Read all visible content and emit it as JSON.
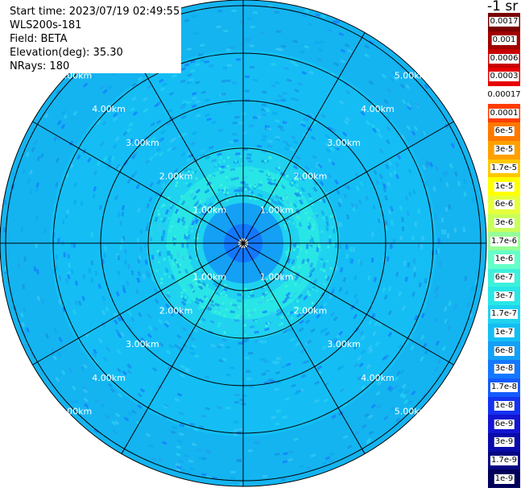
{
  "info": {
    "start_time": "Start time: 2023/07/19 02:49:55",
    "instrument": "WLS200s-181",
    "field": "Field: BETA",
    "elevation": "Elevation(deg): 35.30",
    "nrays": "NRays: 180"
  },
  "range_labels": [
    "1.00km",
    "2.00km",
    "3.00km",
    "4.00km",
    "5.00km"
  ],
  "colorbar": {
    "unit": "-1 sr",
    "ticks": [
      "0.0017",
      "0.001",
      "0.0006",
      "0.0003",
      "0.00017",
      "0.0001",
      "6e-5",
      "3e-5",
      "1.7e-5",
      "1e-5",
      "6e-6",
      "3e-6",
      "1.7e-6",
      "1e-6",
      "6e-7",
      "3e-7",
      "1.7e-7",
      "1e-7",
      "6e-8",
      "3e-8",
      "1.7e-8",
      "1e-8",
      "6e-9",
      "3e-9",
      "1.7e-9",
      "1e-9"
    ],
    "colors": [
      "#7a0000",
      "#a00000",
      "#c80000",
      "#e60000",
      "#ffffff",
      "#ff3c00",
      "#ff7800",
      "#ffa000",
      "#ffc800",
      "#ffff00",
      "#e6ff3c",
      "#c8ff5a",
      "#96ff96",
      "#64ffc8",
      "#3cf0dc",
      "#28e6e6",
      "#1ed2f0",
      "#14bef5",
      "#14a0f5",
      "#1478ff",
      "#145aff",
      "#1432f0",
      "#1414d2",
      "#0a0aaa",
      "#050582",
      "#00005a"
    ]
  }
}
